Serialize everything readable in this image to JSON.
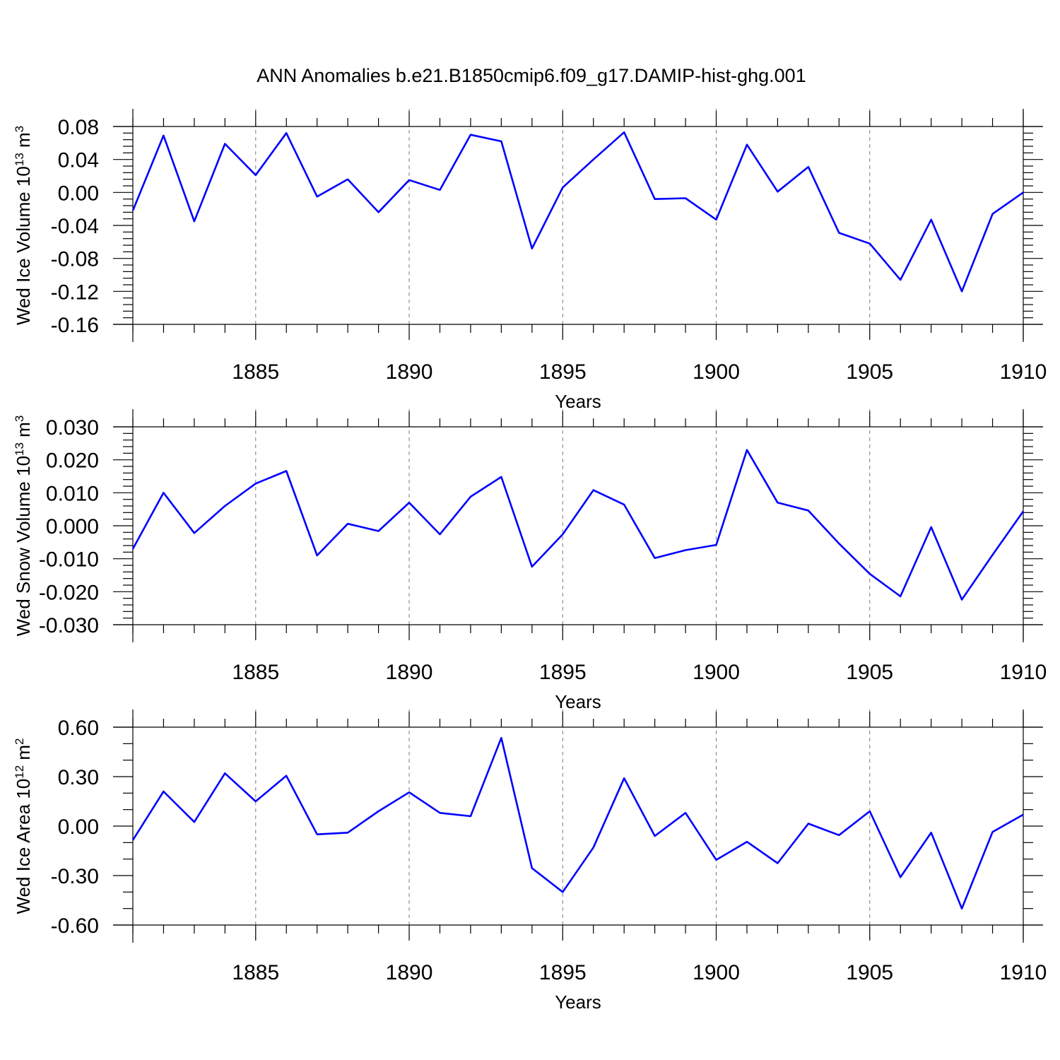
{
  "figure": {
    "title": "ANN Anomalies b.e21.B1850cmip6.f09_g17.DAMIP-hist-ghg.001"
  },
  "chart_data": [
    {
      "type": "line",
      "ylabel_main": "Wed Ice Volume 10",
      "ylabel_exp": "13",
      "ylabel_unit": "m",
      "ylabel_unit_exp": "3",
      "xlabel": "Years",
      "xlim": [
        1881,
        1910
      ],
      "ylim": [
        -0.16,
        0.08
      ],
      "grid": "vertical dashed at major x ticks",
      "x_ticks": [
        1885,
        1890,
        1895,
        1900,
        1905,
        1910
      ],
      "x_tick_labels": [
        "1885",
        "1890",
        "1895",
        "1900",
        "1905",
        "1910"
      ],
      "y_ticks": [
        -0.16,
        -0.12,
        -0.08,
        -0.04,
        0.0,
        0.04,
        0.08
      ],
      "y_tick_labels": [
        "-0.16",
        "-0.12",
        "-0.08",
        "-0.04",
        "0.00",
        "0.04",
        "0.08"
      ],
      "y_minor_step": 0.008,
      "color": "#0000ff",
      "x": [
        1881,
        1882,
        1883,
        1884,
        1885,
        1886,
        1887,
        1888,
        1889,
        1890,
        1891,
        1892,
        1893,
        1894,
        1895,
        1896,
        1897,
        1898,
        1899,
        1900,
        1901,
        1902,
        1903,
        1904,
        1905,
        1906,
        1907,
        1908,
        1909,
        1910
      ],
      "values": [
        -0.022,
        0.069,
        -0.035,
        0.059,
        0.021,
        0.072,
        -0.005,
        0.016,
        -0.024,
        0.015,
        0.003,
        0.07,
        0.062,
        -0.068,
        0.006,
        0.04,
        0.073,
        -0.008,
        -0.007,
        -0.033,
        0.058,
        0.001,
        0.031,
        -0.049,
        -0.062,
        -0.106,
        -0.033,
        -0.12,
        -0.026,
        0.0
      ]
    },
    {
      "type": "line",
      "ylabel_main": "Wed Snow Volume 10",
      "ylabel_exp": "13",
      "ylabel_unit": "m",
      "ylabel_unit_exp": "3",
      "xlabel": "Years",
      "xlim": [
        1881,
        1910
      ],
      "ylim": [
        -0.03,
        0.03
      ],
      "grid": "vertical dashed at major x ticks",
      "x_ticks": [
        1885,
        1890,
        1895,
        1900,
        1905,
        1910
      ],
      "x_tick_labels": [
        "1885",
        "1890",
        "1895",
        "1900",
        "1905",
        "1910"
      ],
      "y_ticks": [
        -0.03,
        -0.02,
        -0.01,
        0.0,
        0.01,
        0.02,
        0.03
      ],
      "y_tick_labels": [
        "-0.030",
        "-0.020",
        "-0.010",
        "0.000",
        "0.010",
        "0.020",
        "0.030"
      ],
      "y_minor_step": 0.002,
      "color": "#0000ff",
      "x": [
        1881,
        1882,
        1883,
        1884,
        1885,
        1886,
        1887,
        1888,
        1889,
        1890,
        1891,
        1892,
        1893,
        1894,
        1895,
        1896,
        1897,
        1898,
        1899,
        1900,
        1901,
        1902,
        1903,
        1904,
        1905,
        1906,
        1907,
        1908,
        1909,
        1910
      ],
      "values": [
        -0.007,
        0.01,
        -0.0022,
        0.006,
        0.0128,
        0.0166,
        -0.009,
        0.0006,
        -0.0016,
        0.007,
        -0.0026,
        0.0088,
        0.0148,
        -0.0124,
        -0.0026,
        0.0108,
        0.0064,
        -0.0098,
        -0.0074,
        -0.0058,
        0.023,
        0.007,
        0.0046,
        -0.0054,
        -0.0146,
        -0.0214,
        -0.0004,
        -0.0224,
        -0.0088,
        0.0044
      ]
    },
    {
      "type": "line",
      "ylabel_main": "Wed Ice Area 10",
      "ylabel_exp": "12",
      "ylabel_unit": "m",
      "ylabel_unit_exp": "2",
      "xlabel": "Years",
      "xlim": [
        1881,
        1910
      ],
      "ylim": [
        -0.6,
        0.6
      ],
      "grid": "vertical dashed at major x ticks",
      "x_ticks": [
        1885,
        1890,
        1895,
        1900,
        1905,
        1910
      ],
      "x_tick_labels": [
        "1885",
        "1890",
        "1895",
        "1900",
        "1905",
        "1910"
      ],
      "y_ticks": [
        -0.6,
        -0.3,
        0.0,
        0.3,
        0.6
      ],
      "y_tick_labels": [
        "-0.60",
        "-0.30",
        "0.00",
        "0.30",
        "0.60"
      ],
      "y_minor_step": 0.1,
      "color": "#0000ff",
      "x": [
        1881,
        1882,
        1883,
        1884,
        1885,
        1886,
        1887,
        1888,
        1889,
        1890,
        1891,
        1892,
        1893,
        1894,
        1895,
        1896,
        1897,
        1898,
        1899,
        1900,
        1901,
        1902,
        1903,
        1904,
        1905,
        1906,
        1907,
        1908,
        1909,
        1910
      ],
      "values": [
        -0.085,
        0.21,
        0.025,
        0.32,
        0.15,
        0.305,
        -0.05,
        -0.04,
        0.09,
        0.205,
        0.08,
        0.06,
        0.535,
        -0.255,
        -0.4,
        -0.13,
        0.29,
        -0.06,
        0.08,
        -0.205,
        -0.095,
        -0.225,
        0.015,
        -0.055,
        0.09,
        -0.31,
        -0.04,
        -0.5,
        -0.035,
        0.07
      ]
    }
  ]
}
